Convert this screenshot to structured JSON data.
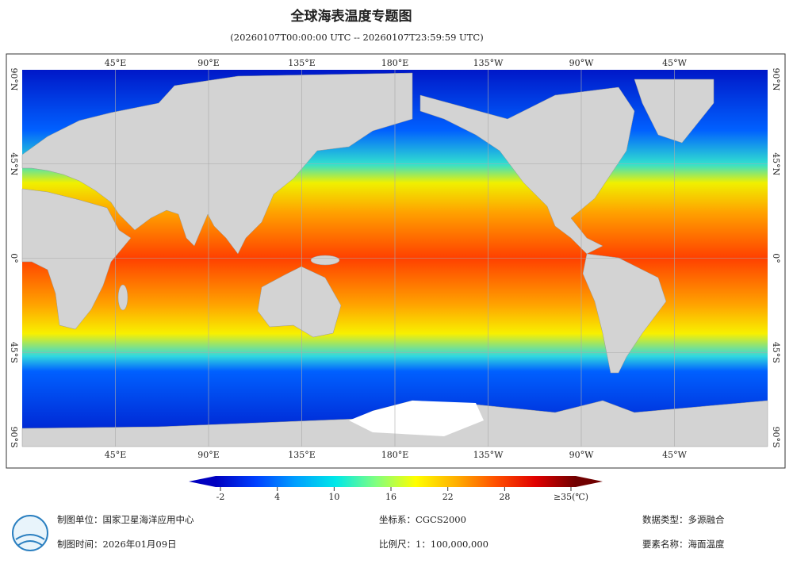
{
  "header": {
    "title": "全球海表温度专题图",
    "subtitle": "(20260107T00:00:00 UTC -- 20260107T23:59:59 UTC)"
  },
  "map": {
    "lon_labels": [
      {
        "value": 45,
        "label": "45°E"
      },
      {
        "value": 90,
        "label": "90°E"
      },
      {
        "value": 135,
        "label": "135°E"
      },
      {
        "value": 180,
        "label": "180°E"
      },
      {
        "value": -135,
        "label": "135°W"
      },
      {
        "value": -90,
        "label": "90°W"
      },
      {
        "value": -45,
        "label": "45°W"
      }
    ],
    "lat_labels": [
      {
        "value": 90,
        "label": "90°N"
      },
      {
        "value": 45,
        "label": "45°N"
      },
      {
        "value": 0,
        "label": "0°"
      },
      {
        "value": -45,
        "label": "45°S"
      },
      {
        "value": -90,
        "label": "90°S"
      }
    ]
  },
  "colorbar": {
    "colors": [
      "#0000c0",
      "#0040ff",
      "#00a0ff",
      "#00e8e8",
      "#80ff80",
      "#ffff00",
      "#ffb000",
      "#ff5000",
      "#e00000",
      "#700000"
    ],
    "range": [
      -2,
      35
    ],
    "ticks": [
      -2,
      4,
      10,
      16,
      22,
      28,
      {
        "value": 35,
        "label": "≥35(℃)"
      }
    ]
  },
  "footer": {
    "left": [
      "制图单位：国家卫星海洋应用中心",
      "制图时间：2026年01月09日"
    ],
    "middle": [
      "坐标系：CGCS2000",
      "比例尺：1：100,000,000"
    ],
    "right": [
      "数据类型：多源融合",
      "要素名称：海面温度"
    ]
  }
}
